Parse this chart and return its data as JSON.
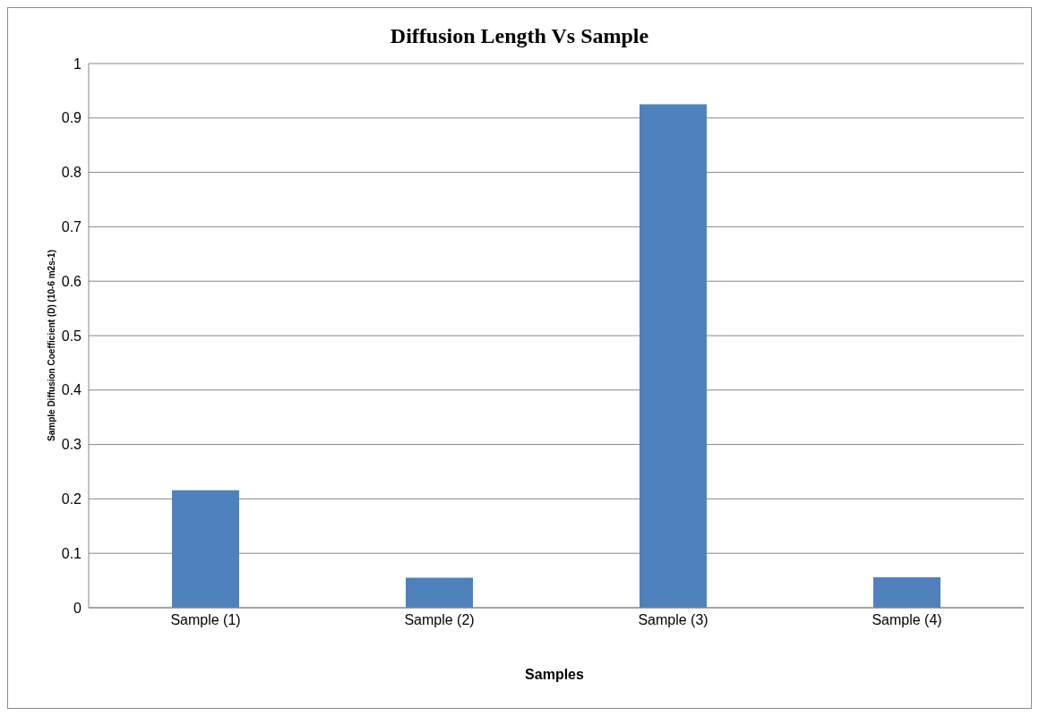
{
  "chart_data": {
    "type": "bar",
    "title": "Diffusion Length Vs Sample",
    "xlabel": "Samples",
    "ylabel": "Sample Diffusion Coefficient (D) (10-6 m2s-1)",
    "categories": [
      "Sample (1)",
      "Sample (2)",
      "Sample (3)",
      "Sample (4)"
    ],
    "series": [
      {
        "color": "#4f81bd",
        "values": [
          0.216,
          0.055,
          0.925,
          0.056
        ]
      }
    ],
    "ylim": [
      0,
      1
    ],
    "yticks": [
      0,
      0.1,
      0.2,
      0.3,
      0.4,
      0.5,
      0.6,
      0.7,
      0.8,
      0.9,
      1
    ],
    "grid": "y",
    "legend": false
  }
}
